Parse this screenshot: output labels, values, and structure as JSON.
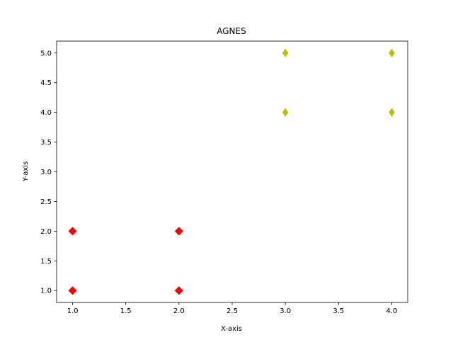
{
  "chart_data": {
    "type": "scatter",
    "title": "AGNES",
    "xlabel": "X-axis",
    "ylabel": "Y-axis",
    "xlim": [
      0.85,
      4.15
    ],
    "ylim": [
      0.8,
      5.2
    ],
    "xticks": [
      "1.0",
      "1.5",
      "2.0",
      "2.5",
      "3.0",
      "3.5",
      "4.0"
    ],
    "yticks": [
      "1.0",
      "1.5",
      "2.0",
      "2.5",
      "3.0",
      "3.5",
      "4.0",
      "4.5",
      "5.0"
    ],
    "grid": false,
    "series": [
      {
        "color": "#ff0000",
        "marker": "D",
        "x": [
          1,
          1,
          2,
          2
        ],
        "y": [
          1,
          2,
          1,
          2
        ]
      },
      {
        "color": "#bfbf00",
        "marker": "d",
        "x": [
          3,
          3,
          4,
          4
        ],
        "y": [
          4,
          5,
          4,
          5
        ]
      }
    ]
  }
}
